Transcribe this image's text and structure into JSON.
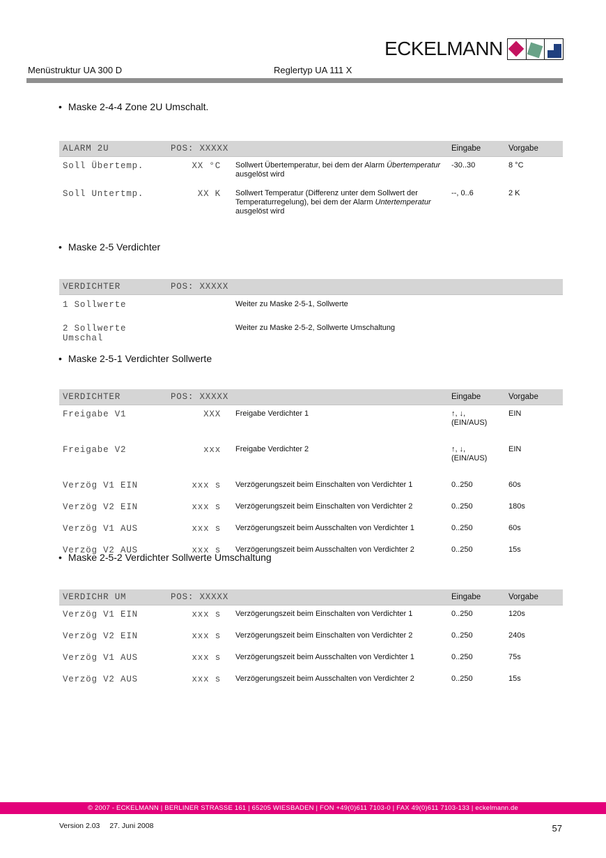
{
  "header": {
    "left": "Menüstruktur UA 300 D",
    "right": "Reglertyp UA 111 X"
  },
  "logo": {
    "text": "ECKELMANN",
    "squares": [
      {
        "name": "magenta-diamond",
        "color": "#C4135F"
      },
      {
        "name": "green-square",
        "color": "#69A287"
      },
      {
        "name": "blue-square",
        "color": "#21407F"
      }
    ]
  },
  "colors": {
    "brand_magenta": "#E3007A",
    "rule_gray": "#8F8F8F",
    "table_header_bg": "#D5D5D5"
  },
  "sections": [
    {
      "bullet": "Maske 2-4-4 Zone 2U Umschalt.",
      "table": {
        "title": "ALARM 2U",
        "pos": "POS: XXXXX",
        "eingabe_header": "Eingabe",
        "vorgabe_header": "Vorgabe",
        "rows": [
          {
            "name": "Soll Übertemp.",
            "value": "XX °C",
            "desc": [
              {
                "text": "Sollwert Übertemperatur, bei dem der Alarm "
              },
              {
                "text": "Übertemperatur",
                "italic": true
              },
              {
                "text": " ausgelöst wird"
              }
            ],
            "eingabe": "-30..30",
            "vorgabe": "8 °C"
          },
          {
            "name": "Soll Untertmp.",
            "value": "XX K",
            "desc": [
              {
                "text": "Sollwert Temperatur (Differenz unter dem Sollwert der Temperaturregelung), bei dem der Alarm "
              },
              {
                "text": "Untertemperatur",
                "italic": true
              },
              {
                "text": " ausgelöst wird"
              }
            ],
            "eingabe": "--, 0..6",
            "vorgabe": "2 K"
          }
        ]
      }
    },
    {
      "bullet": "Maske 2-5 Verdichter",
      "table": {
        "title": "VERDICHTER",
        "pos": "POS: XXXXX",
        "rows": [
          {
            "name": "1 Sollwerte",
            "desc": [
              {
                "text": "Weiter zu Maske 2-5-1, Sollwerte"
              }
            ]
          },
          {
            "name": "2 Sollwerte Umschal",
            "desc": [
              {
                "text": "Weiter zu Maske 2-5-2, Sollwerte Umschaltung"
              }
            ]
          }
        ]
      }
    },
    {
      "bullet": "Maske 2-5-1 Verdichter Sollwerte",
      "table": {
        "title": "VERDICHTER",
        "pos": "POS: XXXXX",
        "eingabe_header": "Eingabe",
        "vorgabe_header": "Vorgabe",
        "rows": [
          {
            "name": "Freigabe V1",
            "value": "XXX",
            "desc": [
              {
                "text": "Freigabe Verdichter 1"
              }
            ],
            "eingabe": "↑, ↓,\n(EIN/AUS)",
            "vorgabe": "EIN"
          },
          {
            "name": "Freigabe V2",
            "value": "xxx",
            "desc": [
              {
                "text": "Freigabe Verdichter 2"
              }
            ],
            "eingabe": "↑, ↓,\n(EIN/AUS)",
            "vorgabe": "EIN"
          },
          {
            "name": "Verzög V1 EIN",
            "value": "xxx s",
            "desc": [
              {
                "text": "Verzögerungszeit beim Einschalten von Verdichter 1"
              }
            ],
            "eingabe": "0..250",
            "vorgabe": "60s"
          },
          {
            "name": "Verzög V2 EIN",
            "value": "xxx s",
            "desc": [
              {
                "text": "Verzögerungszeit beim Einschalten von Verdichter 2"
              }
            ],
            "eingabe": "0..250",
            "vorgabe": "180s"
          },
          {
            "name": "Verzög V1 AUS",
            "value": "xxx s",
            "desc": [
              {
                "text": "Verzögerungszeit beim Ausschalten von Verdichter 1"
              }
            ],
            "eingabe": "0..250",
            "vorgabe": "60s"
          },
          {
            "name": "Verzög V2 AUS",
            "value": "xxx s",
            "desc": [
              {
                "text": "Verzögerungszeit beim Ausschalten von Verdichter 2"
              }
            ],
            "eingabe": "0..250",
            "vorgabe": "15s"
          }
        ]
      }
    },
    {
      "bullet": "Maske 2-5-2 Verdichter Sollwerte Umschaltung",
      "table": {
        "title": "VERDICHR UM",
        "pos": "POS: XXXXX",
        "eingabe_header": "Eingabe",
        "vorgabe_header": "Vorgabe",
        "rows": [
          {
            "name": "Verzög V1 EIN",
            "value": "xxx s",
            "desc": [
              {
                "text": "Verzögerungszeit beim Einschalten von Verdichter 1"
              }
            ],
            "eingabe": "0..250",
            "vorgabe": "120s"
          },
          {
            "name": "Verzög V2 EIN",
            "value": "xxx s",
            "desc": [
              {
                "text": "Verzögerungszeit beim Einschalten von Verdichter 2"
              }
            ],
            "eingabe": "0..250",
            "vorgabe": "240s"
          },
          {
            "name": "Verzög V1 AUS",
            "value": "xxx s",
            "desc": [
              {
                "text": "Verzögerungszeit beim Ausschalten von Verdichter 1"
              }
            ],
            "eingabe": "0..250",
            "vorgabe": "75s"
          },
          {
            "name": "Verzög V2 AUS",
            "value": "xxx s",
            "desc": [
              {
                "text": "Verzögerungszeit beim Ausschalten von Verdichter 2"
              }
            ],
            "eingabe": "0..250",
            "vorgabe": "15s"
          }
        ]
      }
    }
  ],
  "footer": {
    "bar_text": "© 2007 - ECKELMANN | BERLINER STRASSE 161 | 65205 WIESBADEN | FON +49(0)611 7103-0 | FAX 49(0)611 7103-133 | eckelmann.de",
    "version": "Version 2.03",
    "date": "27. Juni 2008",
    "page_number": "57"
  }
}
